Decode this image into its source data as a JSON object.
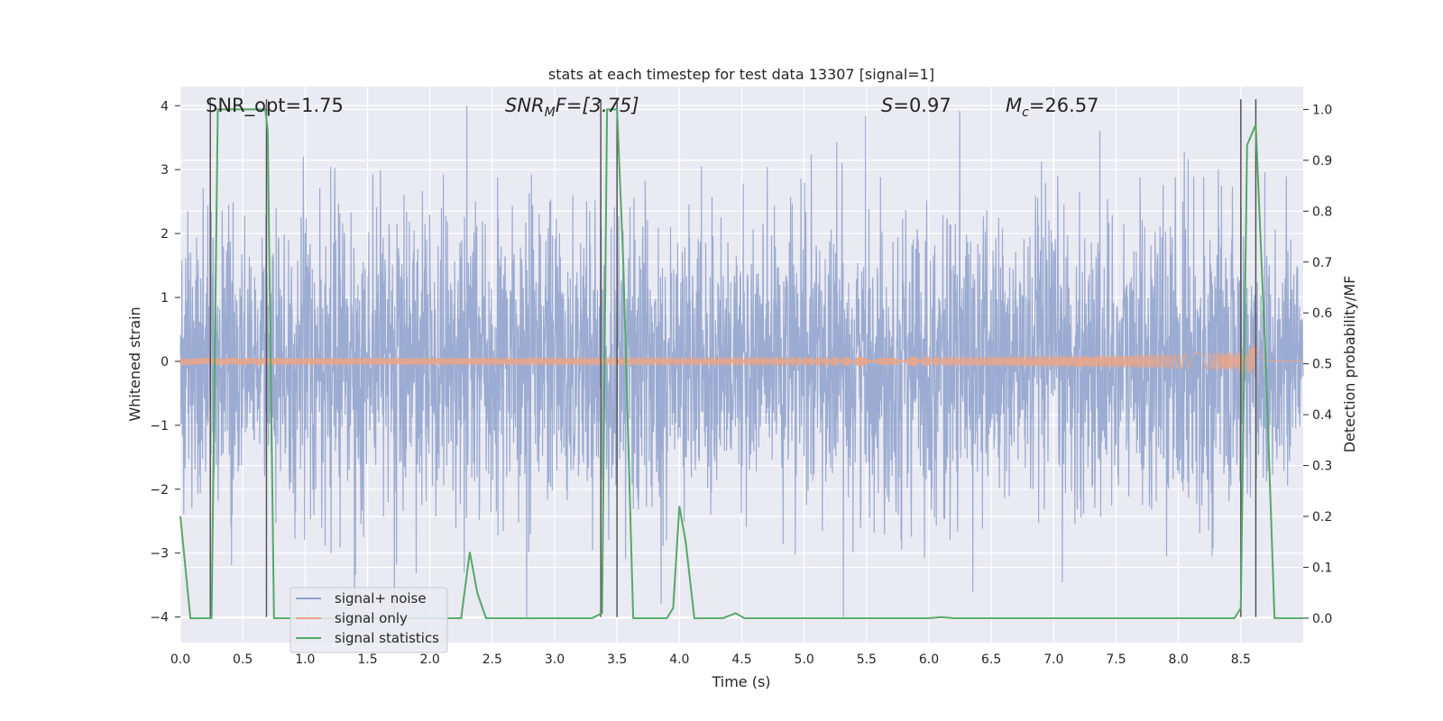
{
  "chart_data": {
    "type": "line",
    "title": "stats at each timestep for test data 13307 [signal=1]",
    "xlabel": "Time (s)",
    "ylabel": "Whitened strain",
    "y2label": "Detection probability/MF",
    "xlim": [
      0.0,
      9.0
    ],
    "ylim": [
      -4.4,
      4.3
    ],
    "y2lim": [
      -0.048,
      1.045
    ],
    "xticks": [
      0.0,
      0.5,
      1.0,
      1.5,
      2.0,
      2.5,
      3.0,
      3.5,
      4.0,
      4.5,
      5.0,
      5.5,
      6.0,
      6.5,
      7.0,
      7.5,
      8.0,
      8.5
    ],
    "xtick_labels": [
      "0.0",
      "0.5",
      "1.0",
      "1.5",
      "2.0",
      "2.5",
      "3.0",
      "3.5",
      "4.0",
      "4.5",
      "5.0",
      "5.5",
      "6.0",
      "6.5",
      "7.0",
      "7.5",
      "8.0",
      "8.5"
    ],
    "yticks": [
      4,
      3,
      2,
      1,
      0,
      -1,
      -2,
      -3,
      -4
    ],
    "ytick_labels": [
      "4",
      "3",
      "2",
      "1",
      "0",
      "−1",
      "−2",
      "−3",
      "−4"
    ],
    "y2ticks": [
      1.0,
      0.9,
      0.8,
      0.7,
      0.6,
      0.5,
      0.4,
      0.3,
      0.2,
      0.1,
      0.0
    ],
    "y2tick_labels": [
      "1.0",
      "0.9",
      "0.8",
      "0.7",
      "0.6",
      "0.5",
      "0.4",
      "0.3",
      "0.2",
      "0.1",
      "0.0"
    ],
    "grid": true,
    "legend_position": "lower-left",
    "annotations": {
      "snr_opt": "SNR_opt=1.75",
      "snr_mf_main": "SNR",
      "snr_mf_sub": "M",
      "snr_mf_rest": "F=[3.75]",
      "s_main": "S",
      "s_rest": "=0.97",
      "mc_main": "M",
      "mc_sub": "c",
      "mc_rest": "=26.57"
    },
    "series": [
      {
        "name": "signal+ noise",
        "color": "#8da0cb",
        "axis": "left",
        "description_range": [
          -4.0,
          4.0
        ],
        "band_sigma": 1.5
      },
      {
        "name": "signal only",
        "color": "#e8a58a",
        "axis": "left",
        "chirp_peak_time": 8.62,
        "chirp_peak_amplitude": 0.4
      },
      {
        "name": "signal statistics",
        "color": "#55a868",
        "axis": "right",
        "x": [
          0.0,
          0.08,
          0.15,
          0.25,
          0.3,
          0.35,
          0.4,
          0.5,
          0.6,
          0.68,
          0.7,
          0.75,
          0.8,
          0.9,
          1.0,
          1.5,
          2.0,
          2.25,
          2.32,
          2.38,
          2.45,
          2.5,
          2.6,
          3.0,
          3.3,
          3.38,
          3.42,
          3.45,
          3.5,
          3.55,
          3.63,
          3.7,
          3.9,
          3.95,
          4.0,
          4.05,
          4.12,
          4.2,
          4.3,
          4.35,
          4.45,
          4.52,
          4.6,
          5.0,
          6.0,
          6.1,
          6.2,
          6.5,
          7.0,
          8.0,
          8.45,
          8.5,
          8.55,
          8.62,
          8.7,
          8.77,
          8.85,
          9.0
        ],
        "y": [
          0.2,
          0.0,
          0.0,
          0.0,
          1.0,
          1.0,
          1.0,
          1.0,
          1.0,
          1.0,
          0.96,
          0.0,
          0.0,
          0.0,
          0.0,
          0.0,
          0.0,
          0.0,
          0.13,
          0.05,
          0.0,
          0.0,
          0.0,
          0.0,
          0.0,
          0.01,
          1.0,
          1.0,
          1.0,
          0.7,
          0.0,
          0.0,
          0.0,
          0.02,
          0.22,
          0.15,
          0.0,
          0.0,
          0.0,
          0.0,
          0.01,
          0.0,
          0.0,
          0.0,
          0.0,
          0.002,
          0.0,
          0.0,
          0.0,
          0.0,
          0.0,
          0.02,
          0.93,
          0.97,
          0.5,
          0.0,
          0.0,
          0.0
        ]
      }
    ],
    "vertical_lines": [
      0.24,
      0.69,
      3.37,
      3.5,
      8.5,
      8.62
    ]
  }
}
